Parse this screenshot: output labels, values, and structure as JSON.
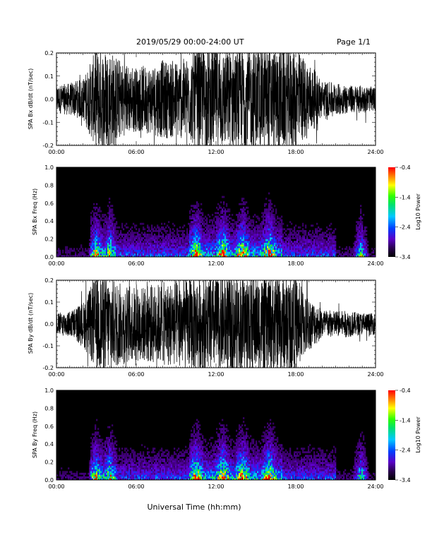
{
  "header": {
    "title": "2019/05/29  00:00-24:00 UT",
    "page": "Page 1/1"
  },
  "xlabel": "Universal Time (hh:mm)",
  "chart_data": [
    {
      "type": "line",
      "title": "",
      "xlabel": "",
      "ylabel": "SPA Bx dB/dt (nT/sec)",
      "xlim": [
        0,
        24
      ],
      "ylim": [
        -0.2,
        0.2
      ],
      "x_ticks": [
        "00:00",
        "06:00",
        "12:00",
        "18:00",
        "24:00"
      ],
      "y_ticks": [
        "-0.2",
        "-0.1",
        "0.0",
        "0.1",
        "0.2"
      ],
      "series": [
        {
          "x": [
            0,
            1,
            2,
            3,
            3.5,
            4,
            5,
            6,
            7,
            8,
            9,
            10,
            10.5,
            11,
            12,
            13,
            14,
            15,
            16,
            17,
            18,
            19,
            20,
            21,
            22,
            23,
            24
          ],
          "amplitude": [
            0.06,
            0.07,
            0.09,
            0.22,
            0.22,
            0.22,
            0.16,
            0.14,
            0.15,
            0.17,
            0.17,
            0.18,
            0.22,
            0.22,
            0.22,
            0.22,
            0.22,
            0.22,
            0.22,
            0.22,
            0.22,
            0.16,
            0.08,
            0.07,
            0.06,
            0.06,
            0.05
          ]
        }
      ]
    },
    {
      "type": "heatmap",
      "title": "",
      "xlabel": "",
      "ylabel": "SPA Bx Freq (Hz)",
      "xlim": [
        0,
        24
      ],
      "ylim": [
        0,
        1.0
      ],
      "x_ticks": [
        "00:00",
        "06:00",
        "12:00",
        "18:00",
        "24:00"
      ],
      "y_ticks": [
        "0.0",
        "0.2",
        "0.4",
        "0.6",
        "0.8",
        "1.0"
      ],
      "colorbar": {
        "label": "Log10 Power",
        "range": [
          -3.4,
          -0.4
        ],
        "ticks": [
          "-0.4",
          "-1.4",
          "-2.4",
          "-3.4"
        ]
      },
      "activity_peaks_hr": [
        3.0,
        4.0,
        10.5,
        12.5,
        14.0,
        16.0,
        22.9
      ]
    },
    {
      "type": "line",
      "title": "",
      "xlabel": "",
      "ylabel": "SPA By dB/dt (nT/sec)",
      "xlim": [
        0,
        24
      ],
      "ylim": [
        -0.2,
        0.2
      ],
      "x_ticks": [
        "00:00",
        "06:00",
        "12:00",
        "18:00",
        "24:00"
      ],
      "y_ticks": [
        "-0.2",
        "-0.1",
        "0.0",
        "0.1",
        "0.2"
      ],
      "series": [
        {
          "x": [
            0,
            1,
            2,
            3,
            3.5,
            4,
            5,
            6,
            7,
            8,
            9,
            10,
            10.5,
            11,
            12,
            13,
            14,
            15,
            16,
            17,
            18,
            19,
            20,
            21,
            22,
            23,
            24
          ],
          "amplitude": [
            0.05,
            0.06,
            0.1,
            0.22,
            0.22,
            0.22,
            0.18,
            0.17,
            0.18,
            0.19,
            0.2,
            0.21,
            0.22,
            0.22,
            0.22,
            0.22,
            0.22,
            0.22,
            0.22,
            0.22,
            0.22,
            0.12,
            0.07,
            0.06,
            0.06,
            0.05,
            0.05
          ]
        }
      ]
    },
    {
      "type": "heatmap",
      "title": "",
      "xlabel": "",
      "ylabel": "SPA By Freq (Hz)",
      "xlim": [
        0,
        24
      ],
      "ylim": [
        0,
        1.0
      ],
      "x_ticks": [
        "00:00",
        "06:00",
        "12:00",
        "18:00",
        "24:00"
      ],
      "y_ticks": [
        "0.0",
        "0.2",
        "0.4",
        "0.6",
        "0.8",
        "1.0"
      ],
      "colorbar": {
        "label": "Log10 Power",
        "range": [
          -3.4,
          -0.4
        ],
        "ticks": [
          "-0.4",
          "-1.4",
          "-2.4",
          "-3.4"
        ]
      },
      "activity_peaks_hr": [
        3.0,
        4.0,
        10.5,
        12.5,
        14.0,
        16.0,
        22.9
      ]
    }
  ]
}
